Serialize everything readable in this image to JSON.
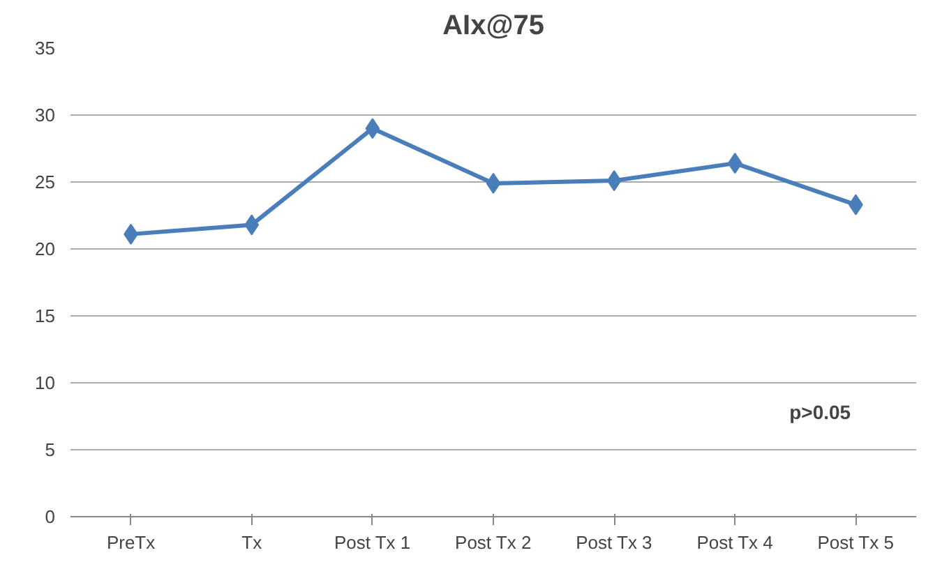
{
  "chart_data": {
    "type": "line",
    "title": "AIx@75",
    "categories": [
      "PreTx",
      "Tx",
      "Post Tx 1",
      "Post Tx 2",
      "Post Tx 3",
      "Post Tx 4",
      "Post Tx 5"
    ],
    "series": [
      {
        "color": "#4a7ebb",
        "values": [
          21.1,
          21.8,
          29.0,
          24.9,
          25.1,
          26.4,
          23.3
        ]
      }
    ],
    "ylim": [
      0,
      35
    ],
    "yticks": [
      0,
      5,
      10,
      15,
      20,
      25,
      30,
      35
    ],
    "grid": "y",
    "marker": "diamond",
    "line_style": "solid",
    "annotations": [
      "p>0.05"
    ]
  }
}
